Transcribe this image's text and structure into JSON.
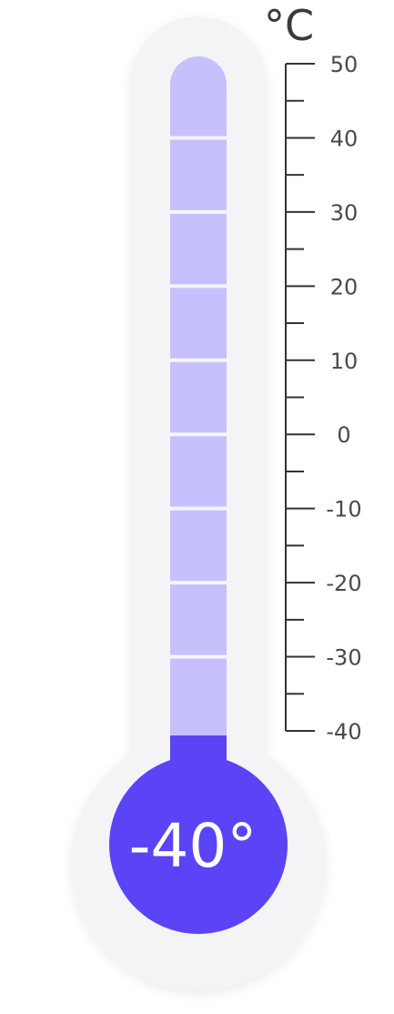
{
  "thermometer": {
    "unit": "°C",
    "reading": "-40°",
    "current_value": -40,
    "scale_min": -40,
    "scale_max": 50,
    "major_step": 10,
    "minor_step": 5,
    "scale_labels": [
      "50",
      "40",
      "30",
      "20",
      "10",
      "0",
      "-10",
      "-20",
      "-30",
      "-40"
    ],
    "colors": {
      "tube_fill": "#c6c0fd",
      "mercury": "#5b44f5",
      "bulb": "#5b44f5",
      "outer_shell": "#f4f4f6",
      "scale_line": "#333333"
    }
  }
}
